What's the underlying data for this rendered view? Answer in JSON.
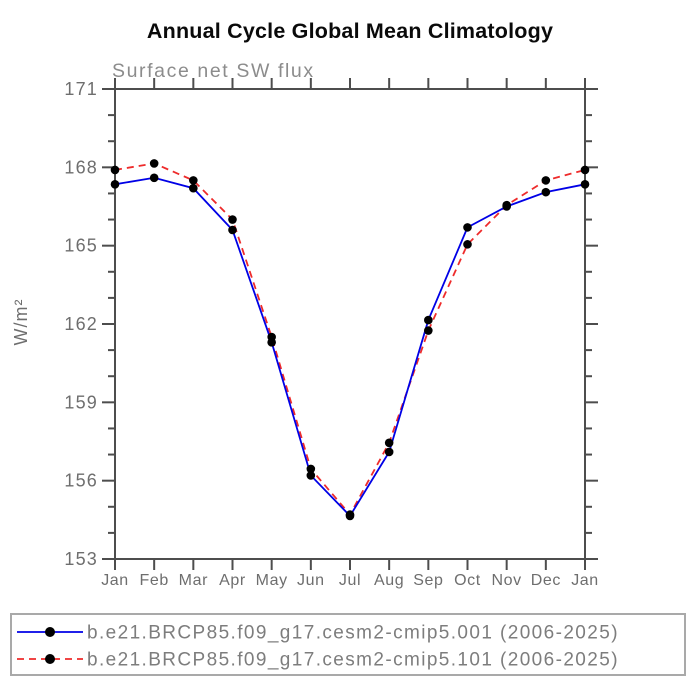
{
  "title": "Annual Cycle Global Mean Climatology",
  "subtitle": "Surface net SW flux",
  "ylabel": "W/m²",
  "chart_data": {
    "type": "line",
    "x_categories": [
      "Jan",
      "Feb",
      "Mar",
      "Apr",
      "May",
      "Jun",
      "Jul",
      "Aug",
      "Sep",
      "Oct",
      "Nov",
      "Dec",
      "Jan"
    ],
    "xlabel": "",
    "ylim": [
      153,
      171
    ],
    "ytick_major": [
      153,
      156,
      159,
      162,
      165,
      168,
      171
    ],
    "ytick_minor_step": 1,
    "grid": false,
    "legend_position": "bottom",
    "marker": "filled-circle",
    "marker_color": "#000000",
    "series": [
      {
        "name": "b.e21.BRCP85.f09_g17.cesm2-cmip5.001 (2006-2025)",
        "color": "#0000e6",
        "line_style": "solid",
        "values": [
          167.35,
          167.6,
          167.2,
          165.6,
          161.3,
          156.2,
          154.65,
          157.1,
          162.15,
          165.7,
          166.5,
          167.05,
          167.35
        ]
      },
      {
        "name": "b.e21.BRCP85.f09_g17.cesm2-cmip5.101 (2006-2025)",
        "color": "#ee2b2b",
        "line_style": "dashed",
        "values": [
          167.9,
          168.15,
          167.5,
          166.0,
          161.5,
          156.45,
          154.7,
          157.45,
          161.75,
          165.05,
          166.55,
          167.5,
          167.9
        ]
      }
    ]
  },
  "style_colors": {
    "title": "#0a0a0a",
    "subtitle": "#8c8c8c",
    "axis": "#4d4d4d",
    "tick_label": "#6e6e6e",
    "legend_text": "#7d7d7d",
    "legend_border": "#a9a9a9",
    "background": "#ffffff"
  }
}
